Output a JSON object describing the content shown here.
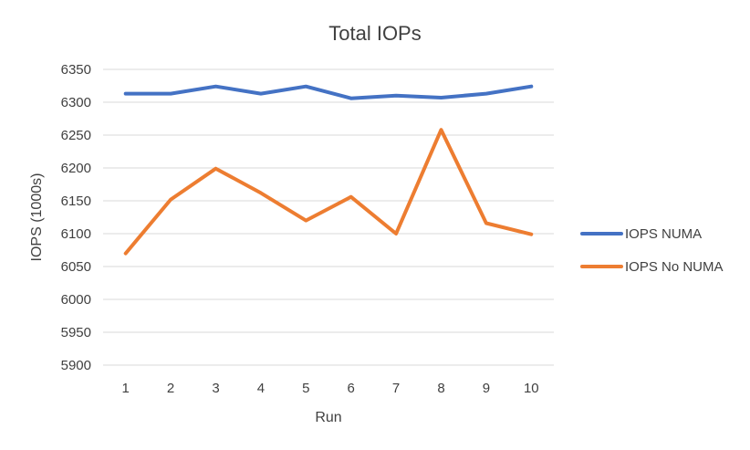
{
  "chart_data": {
    "type": "line",
    "title": "Total IOPs",
    "xlabel": "Run",
    "ylabel": "IOPS (1000s)",
    "categories": [
      "1",
      "2",
      "3",
      "4",
      "5",
      "6",
      "7",
      "8",
      "9",
      "10"
    ],
    "ylim": [
      5900,
      6350
    ],
    "yticks": [
      5900,
      5950,
      6000,
      6050,
      6100,
      6150,
      6200,
      6250,
      6300,
      6350
    ],
    "grid": true,
    "legend": "right",
    "series": [
      {
        "name": "IOPS NUMA",
        "color": "#4472C4",
        "values": [
          6313,
          6313,
          6324,
          6313,
          6324,
          6306,
          6310,
          6307,
          6313,
          6324
        ]
      },
      {
        "name": "IOPS No NUMA",
        "color": "#ED7D31",
        "values": [
          6070,
          6152,
          6199,
          6162,
          6120,
          6156,
          6100,
          6258,
          6116,
          6099
        ]
      }
    ]
  }
}
